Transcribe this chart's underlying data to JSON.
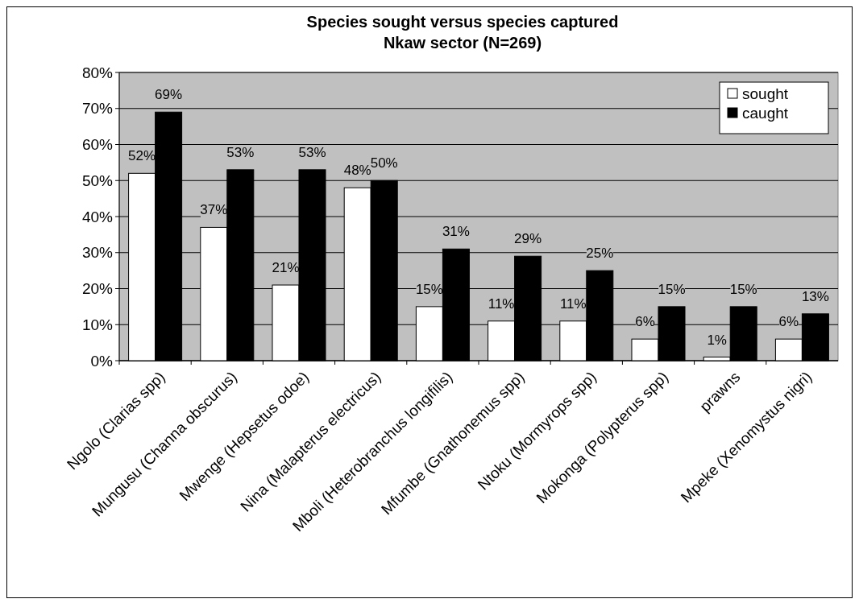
{
  "chart_data": {
    "type": "bar",
    "title": "Species sought versus species captured",
    "subtitle": "Nkaw sector  (N=269)",
    "categories": [
      "Ngolo (Clarias spp)",
      "Mungusu (Channa obscurus)",
      "Mwenge (Hepsetus odoe)",
      "Nina (Malapterus electricus)",
      "Mboli (Heterobranchus longifilis)",
      "Mfumbe (Gnathonemus spp)",
      "Ntoku (Mormyrops spp)",
      "Mokonga (Polypterus spp)",
      "prawns",
      "Mpeke (Xenomystus nigri)"
    ],
    "series": [
      {
        "name": "sought",
        "color": "#ffffff",
        "values": [
          52,
          37,
          21,
          48,
          15,
          11,
          11,
          6,
          1,
          6
        ],
        "value_labels": [
          "52%",
          "37%",
          "21%",
          "48%",
          "15%",
          "11%",
          "11%",
          "6%",
          "1%",
          "6%"
        ]
      },
      {
        "name": "caught",
        "color": "#000000",
        "values": [
          69,
          53,
          53,
          50,
          31,
          29,
          25,
          15,
          15,
          13
        ],
        "value_labels": [
          "69%",
          "53%",
          "53%",
          "50%",
          "31%",
          "29%",
          "25%",
          "15%",
          "15%",
          "13%"
        ]
      }
    ],
    "ylim": [
      0,
      80
    ],
    "yticks": [
      {
        "value": 0,
        "label": "0%"
      },
      {
        "value": 10,
        "label": "10%"
      },
      {
        "value": 20,
        "label": "20%"
      },
      {
        "value": 30,
        "label": "30%"
      },
      {
        "value": 40,
        "label": "40%"
      },
      {
        "value": 50,
        "label": "50%"
      },
      {
        "value": 60,
        "label": "60%"
      },
      {
        "value": 70,
        "label": "70%"
      },
      {
        "value": 80,
        "label": "80%"
      }
    ],
    "grid": "y",
    "legend": "top right"
  }
}
